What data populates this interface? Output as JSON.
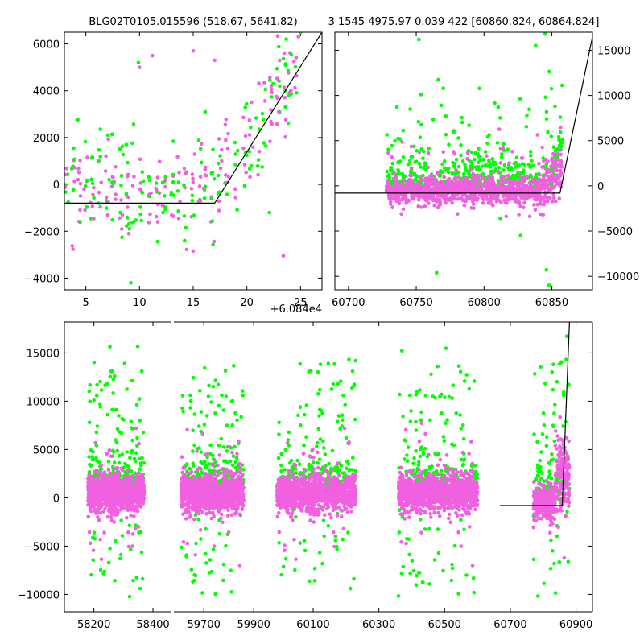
{
  "chart_data": [
    {
      "type": "scatter",
      "title": "BLG02T0105.015596 (518.67, 5641.82)",
      "x_offset_label": "+6.084e4",
      "xlim": [
        3,
        27
      ],
      "ylim": [
        -4500,
        6500
      ],
      "xticks": [
        5,
        10,
        15,
        20,
        25
      ],
      "yticks": [
        -4000,
        -2000,
        0,
        2000,
        4000,
        6000
      ],
      "y_axis_side": "left",
      "series": [
        {
          "name": "magenta",
          "color": "#f060e0"
        },
        {
          "name": "green",
          "color": "#00ff00"
        }
      ],
      "model_line": {
        "x": [
          3,
          17,
          27
        ],
        "y": [
          -800,
          -800,
          6500
        ],
        "color": "#000000"
      }
    },
    {
      "type": "scatter",
      "title": "3 1545 4975.97 0.039 422 [60860.824, 60864.824]",
      "xlim": [
        60690,
        60880
      ],
      "ylim": [
        -11500,
        17000
      ],
      "xticks": [
        60700,
        60750,
        60800,
        60850
      ],
      "yticks": [
        -10000,
        -5000,
        0,
        5000,
        10000,
        15000
      ],
      "y_axis_side": "right",
      "series": [
        {
          "name": "magenta",
          "color": "#f060e0"
        },
        {
          "name": "green",
          "color": "#00ff00"
        }
      ],
      "model_line": {
        "x": [
          60690,
          60856,
          60880
        ],
        "y": [
          -800,
          -800,
          16500
        ],
        "color": "#000000"
      }
    },
    {
      "type": "scatter",
      "xlim": [
        58100,
        60950
      ],
      "ylim": [
        -11800,
        18200
      ],
      "xticks": [
        58200,
        58400,
        59700,
        59900,
        60100,
        60300,
        60500,
        60700,
        60900
      ],
      "yticks": [
        -10000,
        -5000,
        0,
        5000,
        10000,
        15000
      ],
      "y_axis_side": "left",
      "broken_x_axis": true,
      "seasons": [
        {
          "x": [
            58180,
            58370
          ]
        },
        {
          "x": [
            59610,
            59860
          ]
        },
        {
          "x": [
            59990,
            60230
          ]
        },
        {
          "x": [
            60360,
            60600
          ]
        },
        {
          "x": [
            60770,
            60880
          ]
        }
      ],
      "series": [
        {
          "name": "magenta",
          "color": "#f060e0"
        },
        {
          "name": "green",
          "color": "#00ff00"
        }
      ],
      "model_line": {
        "x": [
          60668,
          60858,
          60880
        ],
        "y": [
          -800,
          -800,
          18200
        ],
        "color": "#000000"
      }
    }
  ]
}
